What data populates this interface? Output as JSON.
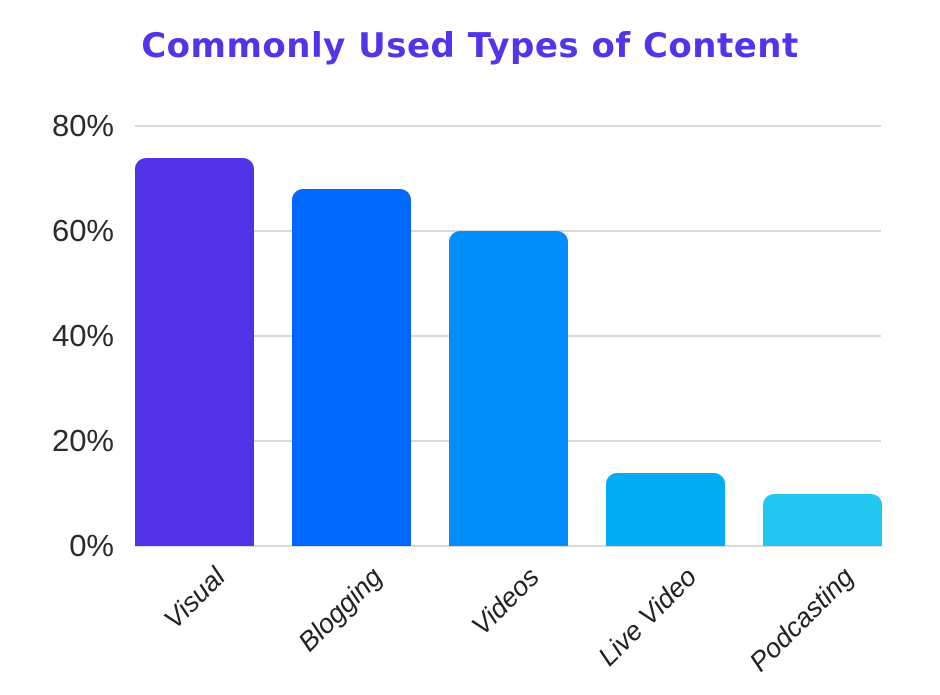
{
  "chart_data": {
    "type": "bar",
    "title": "Commonly Used Types of Content",
    "title_color": "#5433e9",
    "categories": [
      "Visual",
      "Blogging",
      "Videos",
      "Live Video",
      "Podcasting"
    ],
    "values": [
      74,
      68,
      60,
      14,
      10
    ],
    "bar_colors": [
      "#5233e8",
      "#0068fa",
      "#008ffa",
      "#00adf2",
      "#22c7f2"
    ],
    "bar_dotted_texture": [
      false,
      false,
      false,
      true,
      true
    ],
    "y_ticks": [
      {
        "value": 0,
        "label": "0%"
      },
      {
        "value": 20,
        "label": "20%"
      },
      {
        "value": 40,
        "label": "40%"
      },
      {
        "value": 60,
        "label": "60%"
      },
      {
        "value": 80,
        "label": "80%"
      }
    ],
    "ylim": [
      0,
      80
    ],
    "xlabel": "",
    "ylabel": "",
    "grid": true,
    "gridline_color": "#d9d9d9",
    "legend": "none",
    "background_color": "#ffffff"
  }
}
